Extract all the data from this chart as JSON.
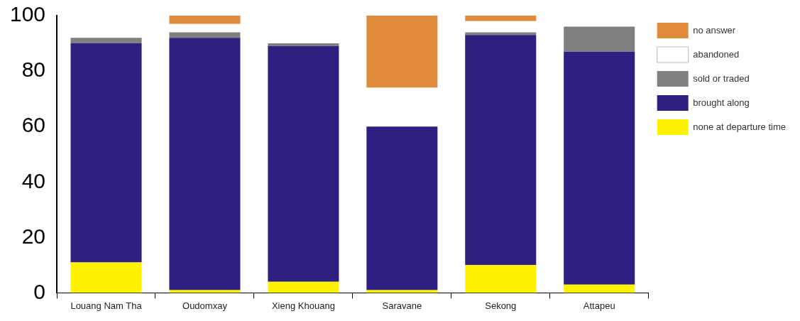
{
  "chart_data": {
    "type": "bar",
    "stacked": true,
    "categories": [
      "Louang Nam Tha",
      "Oudomxay",
      "Xieng Khouang",
      "Saravane",
      "Sekong",
      "Attapeu"
    ],
    "series": [
      {
        "name": "none at departure time",
        "color": "#fff200",
        "values": [
          11,
          1,
          4,
          1,
          10,
          3
        ]
      },
      {
        "name": "brought along",
        "color": "#2e2080",
        "values": [
          79,
          91,
          85,
          59,
          83,
          84
        ]
      },
      {
        "name": "sold or traded",
        "color": "#808080",
        "values": [
          2,
          2,
          1,
          0,
          1,
          9
        ]
      },
      {
        "name": "abandoned",
        "color": "#ffffff",
        "values": [
          0,
          3,
          0,
          14,
          4,
          0
        ]
      },
      {
        "name": "no answer",
        "color": "#e08a3c",
        "values": [
          0,
          3,
          0,
          26,
          2,
          0
        ]
      }
    ],
    "ylim": [
      0,
      100
    ],
    "yticks": [
      0,
      20,
      40,
      60,
      80,
      100
    ],
    "grid": false,
    "legend": "top right"
  }
}
